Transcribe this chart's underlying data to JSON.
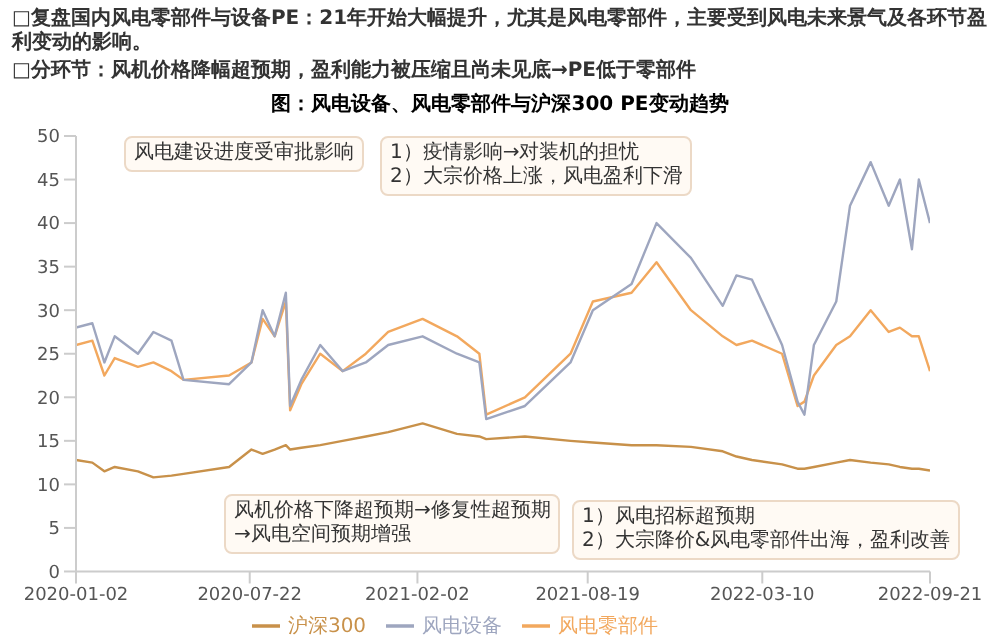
{
  "chart_data": {
    "type": "line",
    "title": "图：风电设备、风电零部件与沪深300 PE变动趋势",
    "annotations": [
      "□复盘国内风电零部件与设备PE：21年开始大幅提升，尤其是风电零部件，主要受到风电未来景气及各环节盈利变动的影响。",
      "□分环节：风机价格降幅超预期，盈利能力被压缩且尚未见底→PE低于零部件",
      "1）疫情影响→对装机的担忧\n2）大宗价格上涨，风电盈利下滑",
      "风电建设进度受审批影响",
      "风机价格下降超预期→修复性超预期\n→风电空间预期增强",
      "1）风电招标超预期\n2）大宗降价&风电零部件出海，盈利改善"
    ],
    "x": [
      "2020-01-02",
      "2020-01-21",
      "2020-02-04",
      "2020-02-16",
      "2020-03-14",
      "2020-04-01",
      "2020-04-22",
      "2020-05-06",
      "2020-06-28",
      "2020-07-24",
      "2020-08-06",
      "2020-08-20",
      "2020-09-02",
      "2020-09-07",
      "2020-09-20",
      "2020-10-12",
      "2020-11-07",
      "2020-12-04",
      "2020-12-30",
      "2021-02-08",
      "2021-03-20",
      "2021-04-15",
      "2021-04-23",
      "2021-06-07",
      "2021-07-30",
      "2021-08-25",
      "2021-10-09",
      "2021-11-07",
      "2021-12-17",
      "2022-01-23",
      "2022-02-08",
      "2022-02-26",
      "2022-04-02",
      "2022-04-20",
      "2022-04-28",
      "2022-05-09",
      "2022-06-04",
      "2022-06-20",
      "2022-07-14",
      "2022-08-04",
      "2022-08-17",
      "2022-08-31",
      "2022-09-08",
      "2022-09-21"
    ],
    "series": [
      {
        "name": "沪深300",
        "color": "#c8914a",
        "values": [
          12.8,
          12.5,
          11.5,
          12,
          11.5,
          10.8,
          11,
          11.2,
          12,
          14,
          13.5,
          14,
          14.5,
          14,
          14.2,
          14.5,
          15,
          15.5,
          16,
          17,
          15.8,
          15.5,
          15.2,
          15.5,
          15,
          14.8,
          14.5,
          14.5,
          14.3,
          13.8,
          13.2,
          12.8,
          12.3,
          11.8,
          11.8,
          12,
          12.5,
          12.8,
          12.5,
          12.3,
          12,
          11.8,
          11.8,
          11.6
        ]
      },
      {
        "name": "风电零部件",
        "color": "#f2a85e",
        "values": [
          26,
          26.5,
          22.5,
          24.5,
          23.5,
          24,
          23,
          22,
          22.5,
          24,
          29,
          27,
          31,
          18.5,
          21.5,
          25,
          23,
          25,
          27.5,
          29,
          27,
          25,
          18,
          20,
          25,
          31,
          32,
          35.5,
          30,
          27,
          26,
          26.5,
          25,
          19,
          19.5,
          22.5,
          26,
          27,
          30,
          27.5,
          28,
          27,
          27,
          23
        ]
      },
      {
        "name": "风电设备",
        "color": "#9ea6bf",
        "values": [
          28,
          28.5,
          24,
          27,
          25,
          27.5,
          26.5,
          22,
          21.5,
          24,
          30,
          27,
          32,
          19,
          22,
          26,
          23,
          24,
          26,
          27,
          25,
          24,
          17.5,
          19,
          24,
          30,
          33,
          40,
          36,
          30.5,
          34,
          33.5,
          26,
          19.5,
          18,
          26,
          31,
          42,
          47,
          42,
          45,
          37,
          45,
          40
        ]
      }
    ],
    "xlim": [
      "2020-01-02",
      "2022-09-21"
    ],
    "xticks": [
      "2020-01-02",
      "2020-07-22",
      "2021-02-02",
      "2021-08-19",
      "2022-03-10",
      "2022-09-21"
    ],
    "ylim": [
      0,
      50
    ],
    "yticks": [
      0,
      5,
      10,
      15,
      20,
      25,
      30,
      35,
      40,
      45,
      50
    ],
    "legend": "bottom",
    "marker": "none",
    "line_style": "solid"
  }
}
